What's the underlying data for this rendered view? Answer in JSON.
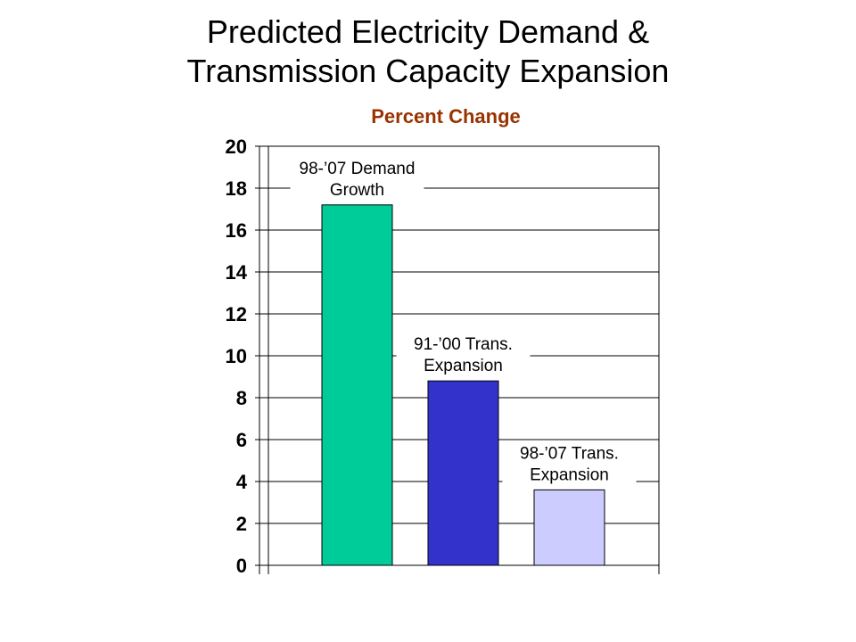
{
  "slide": {
    "title_line1": "Predicted Electricity Demand &",
    "title_line2": "Transmission Capacity Expansion"
  },
  "chart_data": {
    "type": "bar",
    "title": "Percent Change",
    "categories": [
      "98-’07 Demand Growth",
      "91-’00 Trans. Expansion",
      "98-’07 Trans. Expansion"
    ],
    "category_label_lines": [
      [
        "98-’07 Demand",
        "Growth"
      ],
      [
        "91-’00 Trans.",
        "Expansion"
      ],
      [
        "98-’07 Trans.",
        "Expansion"
      ]
    ],
    "values": [
      17.2,
      8.8,
      3.6
    ],
    "bar_colors": [
      "#00CC99",
      "#3333CC",
      "#CCCCFF"
    ],
    "ylim": [
      0,
      20
    ],
    "yticks": [
      0,
      2,
      4,
      6,
      8,
      10,
      12,
      14,
      16,
      18,
      20
    ],
    "grid": true,
    "xlabel": "",
    "ylabel": ""
  }
}
